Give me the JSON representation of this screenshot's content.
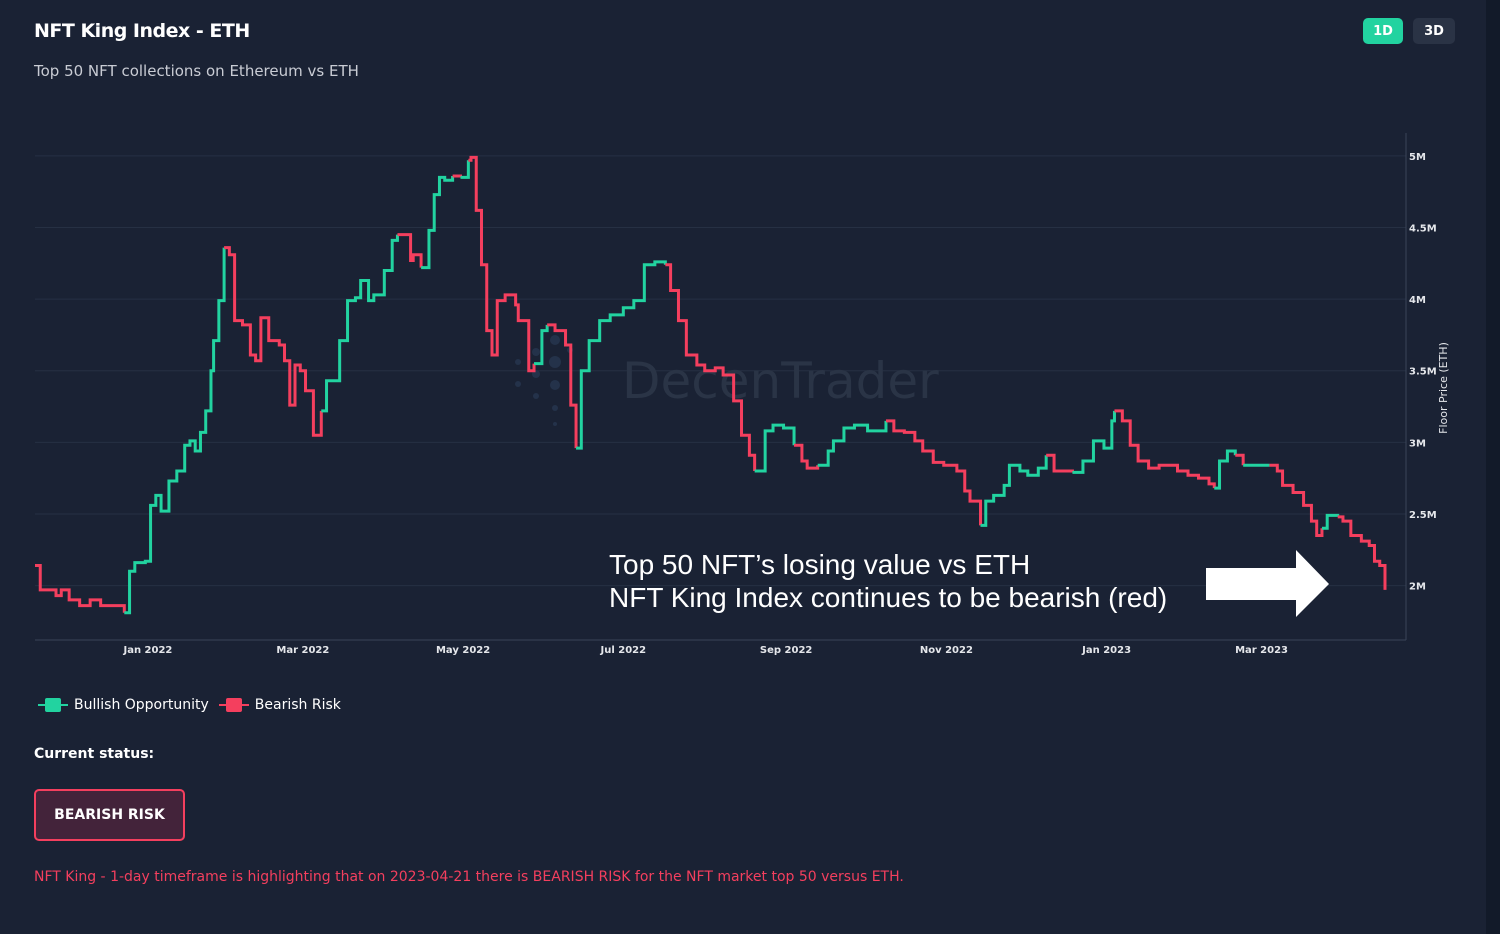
{
  "header": {
    "title": "NFT King Index - ETH",
    "subtitle": "Top 50 NFT collections on Ethereum vs ETH",
    "timeframes": [
      {
        "label": "1D",
        "active": true
      },
      {
        "label": "3D",
        "active": false
      }
    ]
  },
  "legend": {
    "bullish": "Bullish Opportunity",
    "bearish": "Bearish Risk"
  },
  "status": {
    "label": "Current status:",
    "value": "BEARISH RISK",
    "description": "NFT King - 1-day timeframe is highlighting that on 2023-04-21 there is BEARISH RISK for the NFT market top 50 versus ETH."
  },
  "annotation": {
    "line1": "Top 50 NFT’s losing value vs ETH",
    "line2": "NFT King Index continues to be bearish (red)"
  },
  "watermark": "DecenTrader",
  "colors": {
    "bullish": "#22d3a0",
    "bearish": "#f43f5e",
    "background": "#1a2234",
    "grid": "#263043",
    "axis_text": "#e5e7eb"
  },
  "chart_data": {
    "type": "line",
    "title": "NFT King Index - ETH",
    "xlabel": "",
    "ylabel": "Floor Price (ETH)",
    "start_date": "2021-11-19",
    "x_unit": "days since start_date",
    "xlim": [
      0,
      522
    ],
    "ylim": [
      1.62,
      5.16
    ],
    "y_unit": "M",
    "grid": true,
    "legend_position": "bottom-left",
    "y_ticks": [
      {
        "v": 5,
        "label": "5M"
      },
      {
        "v": 4.5,
        "label": "4.5M"
      },
      {
        "v": 4,
        "label": "4M"
      },
      {
        "v": 3.5,
        "label": "3.5M"
      },
      {
        "v": 3,
        "label": "3M"
      },
      {
        "v": 2.5,
        "label": "2.5M"
      },
      {
        "v": 2,
        "label": "2M"
      }
    ],
    "x_ticks": [
      {
        "date": "2022-01-01",
        "label": "Jan 2022"
      },
      {
        "date": "2022-03-01",
        "label": "Mar 2022"
      },
      {
        "date": "2022-05-01",
        "label": "May 2022"
      },
      {
        "date": "2022-07-01",
        "label": "Jul 2022"
      },
      {
        "date": "2022-09-01",
        "label": "Sep 2022"
      },
      {
        "date": "2022-11-01",
        "label": "Nov 2022"
      },
      {
        "date": "2023-01-01",
        "label": "Jan 2023"
      },
      {
        "date": "2023-03-01",
        "label": "Mar 2023"
      }
    ],
    "series": [
      {
        "state": "bear",
        "points": [
          [
            0,
            2.14
          ],
          [
            2,
            1.97
          ],
          [
            8,
            1.93
          ],
          [
            10,
            1.97
          ],
          [
            13,
            1.9
          ],
          [
            17,
            1.86
          ],
          [
            21,
            1.9
          ],
          [
            25,
            1.86
          ],
          [
            29,
            1.86
          ],
          [
            34,
            1.81
          ]
        ]
      },
      {
        "state": "bull",
        "points": [
          [
            36,
            2.1
          ],
          [
            38,
            2.16
          ],
          [
            42,
            2.17
          ],
          [
            44,
            2.56
          ],
          [
            46,
            2.63
          ],
          [
            48,
            2.52
          ],
          [
            51,
            2.73
          ],
          [
            54,
            2.8
          ],
          [
            57,
            2.98
          ],
          [
            59,
            3.01
          ],
          [
            61,
            2.94
          ],
          [
            63,
            3.07
          ],
          [
            65,
            3.22
          ],
          [
            67,
            3.5
          ],
          [
            68,
            3.71
          ],
          [
            70,
            3.99
          ],
          [
            72,
            4.36
          ]
        ]
      },
      {
        "state": "bear",
        "points": [
          [
            74,
            4.31
          ],
          [
            76,
            3.85
          ],
          [
            79,
            3.82
          ],
          [
            82,
            3.61
          ],
          [
            84,
            3.57
          ],
          [
            86,
            3.87
          ],
          [
            89,
            3.71
          ],
          [
            93,
            3.68
          ],
          [
            95,
            3.57
          ],
          [
            97,
            3.26
          ],
          [
            99,
            3.54
          ],
          [
            101,
            3.5
          ],
          [
            103,
            3.36
          ],
          [
            106,
            3.05
          ],
          [
            109,
            3.22
          ]
        ]
      },
      {
        "state": "bull",
        "points": [
          [
            111,
            3.43
          ],
          [
            116,
            3.71
          ],
          [
            119,
            3.99
          ],
          [
            122,
            4.01
          ],
          [
            124,
            4.13
          ],
          [
            127,
            3.99
          ],
          [
            129,
            4.03
          ],
          [
            133,
            4.2
          ],
          [
            136,
            4.41
          ],
          [
            138,
            4.45
          ]
        ]
      },
      {
        "state": "bear",
        "points": [
          [
            143,
            4.27
          ],
          [
            144,
            4.31
          ],
          [
            147,
            4.22
          ]
        ]
      },
      {
        "state": "bull",
        "points": [
          [
            150,
            4.48
          ],
          [
            152,
            4.73
          ],
          [
            154,
            4.85
          ],
          [
            156,
            4.83
          ],
          [
            159,
            4.86
          ]
        ]
      },
      {
        "state": "bear",
        "points": [
          [
            162,
            4.85
          ]
        ]
      },
      {
        "state": "bull",
        "points": [
          [
            165,
            4.97
          ]
        ]
      },
      {
        "state": "bear",
        "points": [
          [
            166,
            4.99
          ],
          [
            168,
            4.62
          ],
          [
            170,
            4.24
          ],
          [
            172,
            3.78
          ],
          [
            174,
            3.61
          ],
          [
            176,
            3.99
          ],
          [
            179,
            4.03
          ],
          [
            183,
            3.96
          ],
          [
            184,
            3.85
          ],
          [
            188,
            3.5
          ],
          [
            190,
            3.55
          ]
        ]
      },
      {
        "state": "bull",
        "points": [
          [
            193,
            3.78
          ],
          [
            195,
            3.82
          ]
        ]
      },
      {
        "state": "bear",
        "points": [
          [
            198,
            3.78
          ],
          [
            202,
            3.68
          ],
          [
            204,
            3.26
          ],
          [
            206,
            2.96
          ]
        ]
      },
      {
        "state": "bull",
        "points": [
          [
            208,
            3.5
          ],
          [
            211,
            3.71
          ],
          [
            215,
            3.85
          ],
          [
            219,
            3.89
          ],
          [
            224,
            3.94
          ],
          [
            228,
            3.99
          ],
          [
            232,
            4.24
          ],
          [
            236,
            4.26
          ],
          [
            240,
            4.24
          ]
        ]
      },
      {
        "state": "bear",
        "points": [
          [
            242,
            4.06
          ],
          [
            245,
            3.85
          ],
          [
            248,
            3.61
          ],
          [
            252,
            3.54
          ],
          [
            255,
            3.5
          ],
          [
            259,
            3.52
          ],
          [
            262,
            3.47
          ],
          [
            266,
            3.29
          ],
          [
            269,
            3.05
          ],
          [
            272,
            2.91
          ],
          [
            274,
            2.8
          ]
        ]
      },
      {
        "state": "bull",
        "points": [
          [
            278,
            3.08
          ],
          [
            281,
            3.12
          ],
          [
            285,
            3.1
          ],
          [
            289,
            2.98
          ]
        ]
      },
      {
        "state": "bear",
        "points": [
          [
            292,
            2.87
          ],
          [
            294,
            2.82
          ],
          [
            298,
            2.84
          ]
        ]
      },
      {
        "state": "bull",
        "points": [
          [
            302,
            2.94
          ],
          [
            304,
            3.01
          ],
          [
            308,
            3.1
          ],
          [
            312,
            3.12
          ],
          [
            317,
            3.08
          ],
          [
            324,
            3.15
          ]
        ]
      },
      {
        "state": "bear",
        "points": [
          [
            327,
            3.08
          ],
          [
            331,
            3.07
          ],
          [
            335,
            3.01
          ],
          [
            338,
            2.94
          ],
          [
            342,
            2.86
          ],
          [
            346,
            2.84
          ],
          [
            351,
            2.8
          ],
          [
            354,
            2.66
          ],
          [
            356,
            2.59
          ],
          [
            360,
            2.42
          ]
        ]
      },
      {
        "state": "bull",
        "points": [
          [
            362,
            2.59
          ],
          [
            365,
            2.63
          ],
          [
            369,
            2.7
          ],
          [
            371,
            2.84
          ],
          [
            375,
            2.8
          ],
          [
            378,
            2.77
          ],
          [
            382,
            2.82
          ],
          [
            385,
            2.91
          ]
        ]
      },
      {
        "state": "bear",
        "points": [
          [
            388,
            2.8
          ],
          [
            395,
            2.79
          ]
        ]
      },
      {
        "state": "bull",
        "points": [
          [
            399,
            2.87
          ],
          [
            403,
            3.01
          ],
          [
            407,
            2.96
          ],
          [
            410,
            3.15
          ],
          [
            411,
            3.22
          ]
        ]
      },
      {
        "state": "bear",
        "points": [
          [
            414,
            3.15
          ],
          [
            417,
            2.98
          ],
          [
            420,
            2.87
          ],
          [
            424,
            2.82
          ],
          [
            428,
            2.84
          ],
          [
            435,
            2.8
          ],
          [
            439,
            2.77
          ],
          [
            443,
            2.75
          ],
          [
            447,
            2.71
          ],
          [
            449,
            2.68
          ]
        ]
      },
      {
        "state": "bull",
        "points": [
          [
            451,
            2.87
          ],
          [
            454,
            2.94
          ],
          [
            457,
            2.91
          ]
        ]
      },
      {
        "state": "bear",
        "points": [
          [
            460,
            2.84
          ]
        ]
      },
      {
        "state": "bull",
        "points": [
          [
            467,
            2.84
          ],
          [
            470,
            2.84
          ]
        ]
      },
      {
        "state": "bear",
        "points": [
          [
            473,
            2.8
          ],
          [
            475,
            2.7
          ],
          [
            479,
            2.65
          ],
          [
            483,
            2.56
          ],
          [
            486,
            2.45
          ],
          [
            488,
            2.35
          ],
          [
            490,
            2.4
          ]
        ]
      },
      {
        "state": "bull",
        "points": [
          [
            492,
            2.49
          ],
          [
            496,
            2.48
          ]
        ]
      },
      {
        "state": "bear",
        "points": [
          [
            498,
            2.45
          ],
          [
            501,
            2.35
          ],
          [
            505,
            2.31
          ],
          [
            508,
            2.28
          ],
          [
            510,
            2.17
          ],
          [
            512,
            2.14
          ],
          [
            514,
            1.97
          ]
        ]
      }
    ]
  }
}
